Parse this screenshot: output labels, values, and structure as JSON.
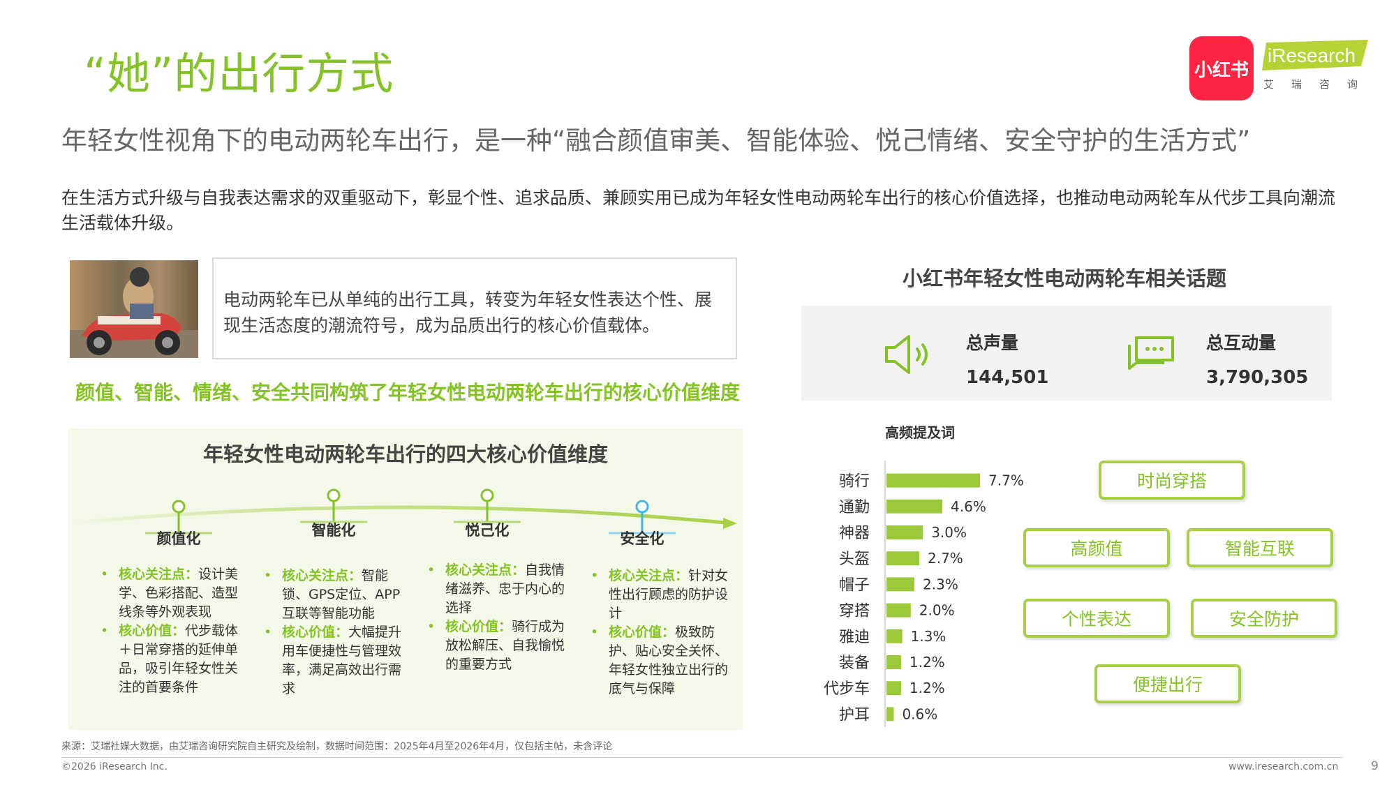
{
  "header": {
    "title": "“她”的出行方式",
    "subtitle": "年轻女性视角下的电动两轮车出行，是一种“融合颜值审美、智能体验、悦己情绪、安全守护的生活方式”",
    "intro": "在生活方式升级与自我表达需求的双重驱动下，彰显个性、追求品质、兼顾实用已成为年轻女性电动两轮车出行的核心价值选择，也推动电动两轮车从代步工具向潮流生活载体升级。"
  },
  "logos": {
    "xiaohongshu": "小红书",
    "iresearch": "iResearch",
    "iresearch_cn": "艾瑞咨询"
  },
  "quote": "电动两轮车已从单纯的出行工具，转变为年轻女性表达个性、展现生活态度的潮流符号，成为品质出行的核心价值载体。",
  "section_heading": "颜值、智能、情绪、安全共同构筑了年轻女性电动两轮车出行的核心价值维度",
  "dimensions_panel": {
    "title": "年轻女性电动两轮车出行的四大核心价值维度",
    "dimensions": [
      {
        "label": "颜值化",
        "focus_key": "核心关注点：",
        "focus": "设计美学、色彩搭配、造型线条等外观表现",
        "value_key": "核心价值：",
        "value": "代步载体＋日常穿搭的延伸单品，吸引年轻女性关注的首要条件",
        "color": "#84c225"
      },
      {
        "label": "智能化",
        "focus_key": "核心关注点：",
        "focus": "智能锁、GPS定位、APP互联等智能功能",
        "value_key": "核心价值：",
        "value": "大幅提升用车便捷性与管理效率，满足高效出行需求",
        "color": "#84c225"
      },
      {
        "label": "悦己化",
        "focus_key": "核心关注点：",
        "focus": "自我情绪滋养、忠于内心的选择",
        "value_key": "核心价值：",
        "value": "骑行成为放松解压、自我愉悦的重要方式",
        "color": "#84c225"
      },
      {
        "label": "安全化",
        "focus_key": "核心关注点：",
        "focus": "针对女性出行顾虑的防护设计",
        "value_key": "核心价值：",
        "value": "极致防护、贴心安全关怀、年轻女性独立出行的底气与保障",
        "color": "#3db6e8"
      }
    ]
  },
  "topics": {
    "title": "小红书年轻女性电动两轮车相关话题",
    "stats": [
      {
        "label": "总声量",
        "value": "144,501",
        "icon": "speaker-icon"
      },
      {
        "label": "总互动量",
        "value": "3,790,305",
        "icon": "chat-icon"
      }
    ],
    "keywords_title": "高频提及词",
    "tags": [
      "时尚穿搭",
      "高颜值",
      "智能互联",
      "个性表达",
      "安全防护",
      "便捷出行"
    ]
  },
  "chart_data": {
    "type": "bar",
    "orientation": "horizontal",
    "title": "高频提及词",
    "categories": [
      "骑行",
      "通勤",
      "神器",
      "头盔",
      "帽子",
      "穿搭",
      "雅迪",
      "装备",
      "代步车",
      "护耳"
    ],
    "values": [
      7.7,
      4.6,
      3.0,
      2.7,
      2.3,
      2.0,
      1.3,
      1.2,
      1.2,
      0.6
    ],
    "value_labels": [
      "7.7%",
      "4.6%",
      "3.0%",
      "2.7%",
      "2.3%",
      "2.0%",
      "1.3%",
      "1.2%",
      "1.2%",
      "0.6%"
    ],
    "unit": "%",
    "bar_color": "#9cc93a",
    "grid": false
  },
  "footer": {
    "source": "来源：艾瑞社媒大数据，由艾瑞咨询研究院自主研究及绘制，数据时间范围：2025年4月至2026年4月，仅包括主帖，未含评论",
    "copyright": "©2026 iResearch Inc.",
    "website": "www.iresearch.com.cn",
    "page": "9"
  },
  "colors": {
    "accent": "#84c225",
    "accent_blue": "#3db6e8",
    "panel_bg": "#f4f8e8",
    "stats_bg": "#f2f2f2"
  }
}
